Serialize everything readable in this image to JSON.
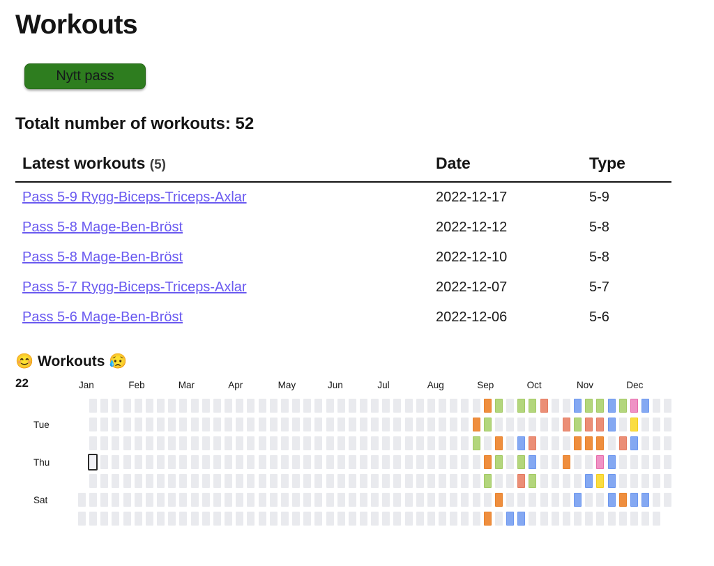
{
  "page": {
    "title": "Workouts"
  },
  "toolbar": {
    "new_workout_label": "Nytt pass"
  },
  "summary": {
    "total_text": "Totalt number of workouts: 52"
  },
  "table": {
    "header": {
      "latest_label": "Latest workouts",
      "count_label": "(5)",
      "date_label": "Date",
      "type_label": "Type"
    },
    "rows": [
      {
        "name": "Pass 5-9 Rygg-Biceps-Triceps-Axlar",
        "date": "2022-12-17",
        "type": "5-9"
      },
      {
        "name": "Pass 5-8 Mage-Ben-Bröst",
        "date": "2022-12-12",
        "type": "5-8"
      },
      {
        "name": "Pass 5-8 Mage-Ben-Bröst",
        "date": "2022-12-10",
        "type": "5-8"
      },
      {
        "name": "Pass 5-7 Rygg-Biceps-Triceps-Axlar",
        "date": "2022-12-07",
        "type": "5-7"
      },
      {
        "name": "Pass 5-6 Mage-Ben-Bröst",
        "date": "2022-12-06",
        "type": "5-6"
      }
    ]
  },
  "heatmap": {
    "emoji_left": "😊",
    "title": "Workouts",
    "emoji_right": "😥",
    "year_label": "22",
    "months": [
      "Jan",
      "Feb",
      "Mar",
      "Apr",
      "May",
      "Jun",
      "Jul",
      "Aug",
      "Sep",
      "Oct",
      "Nov",
      "Dec"
    ],
    "day_labels": [
      {
        "label": "Tue",
        "row": 2
      },
      {
        "label": "Thu",
        "row": 4
      },
      {
        "label": "Sat",
        "row": 6
      }
    ],
    "grid": {
      "columns": 53,
      "rows": 7,
      "row_col_ranges": [
        {
          "row": 1,
          "start": 2,
          "end": 53
        },
        {
          "row": 2,
          "start": 2,
          "end": 53
        },
        {
          "row": 3,
          "start": 2,
          "end": 53
        },
        {
          "row": 4,
          "start": 2,
          "end": 53
        },
        {
          "row": 5,
          "start": 2,
          "end": 53
        },
        {
          "row": 6,
          "start": 1,
          "end": 53
        },
        {
          "row": 7,
          "start": 1,
          "end": 52
        }
      ]
    },
    "colors": {
      "empty": {
        "fill": "#e9eaee",
        "border": "#e9eaee"
      },
      "orange": {
        "fill": "#ef8e3e",
        "border": "#e8822c"
      },
      "green": {
        "fill": "#b3d67c",
        "border": "#a3c964"
      },
      "blue": {
        "fill": "#84a8f2",
        "border": "#6d97ef"
      },
      "salmon": {
        "fill": "#eb8e76",
        "border": "#e47b60"
      },
      "pink": {
        "fill": "#ef92c5",
        "border": "#e76cab"
      },
      "yellow": {
        "fill": "#fadd41",
        "border": "#f4cd1f"
      }
    },
    "workout_cells": [
      {
        "col": 37,
        "row": 1,
        "color": "orange"
      },
      {
        "col": 38,
        "row": 1,
        "color": "green"
      },
      {
        "col": 40,
        "row": 1,
        "color": "green"
      },
      {
        "col": 41,
        "row": 1,
        "color": "green"
      },
      {
        "col": 42,
        "row": 1,
        "color": "salmon"
      },
      {
        "col": 45,
        "row": 1,
        "color": "blue"
      },
      {
        "col": 46,
        "row": 1,
        "color": "green"
      },
      {
        "col": 47,
        "row": 1,
        "color": "green"
      },
      {
        "col": 48,
        "row": 1,
        "color": "blue"
      },
      {
        "col": 49,
        "row": 1,
        "color": "green"
      },
      {
        "col": 50,
        "row": 1,
        "color": "pink"
      },
      {
        "col": 51,
        "row": 1,
        "color": "blue"
      },
      {
        "col": 36,
        "row": 2,
        "color": "orange"
      },
      {
        "col": 37,
        "row": 2,
        "color": "green"
      },
      {
        "col": 44,
        "row": 2,
        "color": "salmon"
      },
      {
        "col": 45,
        "row": 2,
        "color": "green"
      },
      {
        "col": 46,
        "row": 2,
        "color": "salmon"
      },
      {
        "col": 47,
        "row": 2,
        "color": "salmon"
      },
      {
        "col": 48,
        "row": 2,
        "color": "blue"
      },
      {
        "col": 50,
        "row": 2,
        "color": "yellow"
      },
      {
        "col": 36,
        "row": 3,
        "color": "green"
      },
      {
        "col": 38,
        "row": 3,
        "color": "orange"
      },
      {
        "col": 40,
        "row": 3,
        "color": "blue"
      },
      {
        "col": 41,
        "row": 3,
        "color": "salmon"
      },
      {
        "col": 45,
        "row": 3,
        "color": "orange"
      },
      {
        "col": 46,
        "row": 3,
        "color": "orange"
      },
      {
        "col": 47,
        "row": 3,
        "color": "orange"
      },
      {
        "col": 49,
        "row": 3,
        "color": "salmon"
      },
      {
        "col": 50,
        "row": 3,
        "color": "blue"
      },
      {
        "col": 37,
        "row": 4,
        "color": "orange"
      },
      {
        "col": 38,
        "row": 4,
        "color": "green"
      },
      {
        "col": 40,
        "row": 4,
        "color": "green"
      },
      {
        "col": 41,
        "row": 4,
        "color": "blue"
      },
      {
        "col": 44,
        "row": 4,
        "color": "orange"
      },
      {
        "col": 47,
        "row": 4,
        "color": "pink"
      },
      {
        "col": 48,
        "row": 4,
        "color": "blue"
      },
      {
        "col": 37,
        "row": 5,
        "color": "green"
      },
      {
        "col": 40,
        "row": 5,
        "color": "salmon"
      },
      {
        "col": 41,
        "row": 5,
        "color": "green"
      },
      {
        "col": 46,
        "row": 5,
        "color": "blue"
      },
      {
        "col": 47,
        "row": 5,
        "color": "yellow"
      },
      {
        "col": 48,
        "row": 5,
        "color": "blue"
      },
      {
        "col": 38,
        "row": 6,
        "color": "orange"
      },
      {
        "col": 45,
        "row": 6,
        "color": "blue"
      },
      {
        "col": 48,
        "row": 6,
        "color": "blue"
      },
      {
        "col": 49,
        "row": 6,
        "color": "orange"
      },
      {
        "col": 50,
        "row": 6,
        "color": "blue"
      },
      {
        "col": 51,
        "row": 6,
        "color": "blue"
      },
      {
        "col": 37,
        "row": 7,
        "color": "orange"
      },
      {
        "col": 39,
        "row": 7,
        "color": "blue"
      },
      {
        "col": 40,
        "row": 7,
        "color": "blue"
      }
    ],
    "outlined_cell": {
      "col": 2,
      "row": 4
    }
  }
}
